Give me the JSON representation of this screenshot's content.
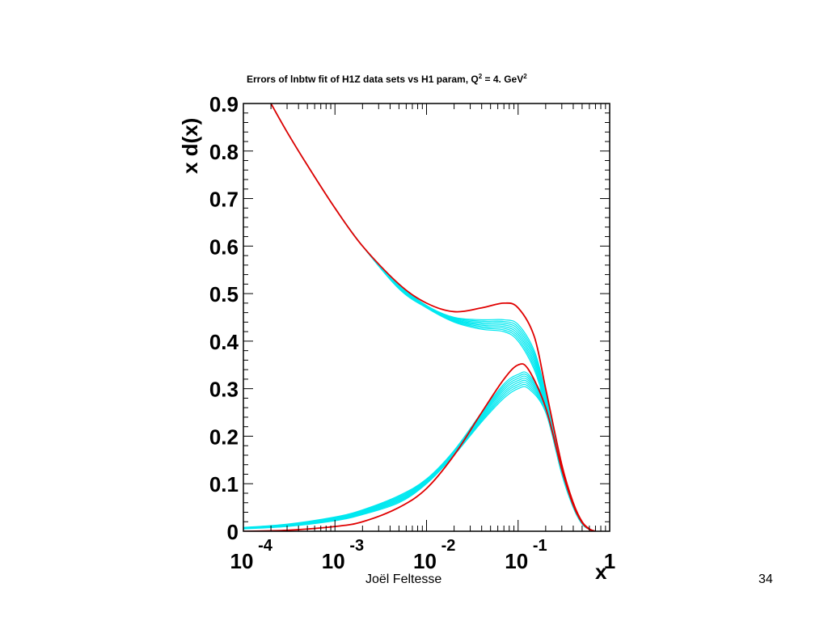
{
  "slide": {
    "author": "Joël Feltesse",
    "page_number": "34"
  },
  "chart_data": {
    "type": "line",
    "title_main": "Errors of lnbtw fit of H1Z data sets vs H1 param, Q",
    "title_sup1": "2",
    "title_mid": " = 4. GeV",
    "title_sup2": "2",
    "ylabel": "x d(x)",
    "xlabel": "x",
    "x_scale": "log",
    "xlim": [
      0.0001,
      1
    ],
    "ylim": [
      0,
      0.9
    ],
    "y_ticks": [
      "0",
      "0.1",
      "0.2",
      "0.3",
      "0.4",
      "0.5",
      "0.6",
      "0.7",
      "0.8",
      "0.9"
    ],
    "x_ticks": [
      {
        "base": "10",
        "exp": "-4"
      },
      {
        "base": "10",
        "exp": "-3"
      },
      {
        "base": "10",
        "exp": "-2"
      },
      {
        "base": "10",
        "exp": "-1"
      },
      {
        "base": "1",
        "exp": ""
      }
    ],
    "grid": false,
    "colors": {
      "reference": "#e00000",
      "fits": "#00e8f0",
      "axis": "#000000"
    },
    "series": [
      {
        "role": "upper-reference",
        "x": [
          0.0002,
          0.0003,
          0.0005,
          0.001,
          0.002,
          0.005,
          0.01,
          0.02,
          0.04,
          0.07,
          0.1,
          0.15,
          0.2,
          0.3,
          0.4,
          0.5,
          0.6,
          0.7
        ],
        "y": [
          0.9,
          0.84,
          0.77,
          0.68,
          0.6,
          0.52,
          0.48,
          0.462,
          0.47,
          0.48,
          0.47,
          0.41,
          0.3,
          0.14,
          0.06,
          0.02,
          0.005,
          0.0
        ]
      },
      {
        "role": "lower-reference",
        "x": [
          0.0001,
          0.0003,
          0.001,
          0.002,
          0.005,
          0.01,
          0.02,
          0.04,
          0.07,
          0.1,
          0.13,
          0.2,
          0.3,
          0.4,
          0.5,
          0.6,
          0.7
        ],
        "y": [
          0.0,
          0.002,
          0.01,
          0.02,
          0.05,
          0.09,
          0.16,
          0.25,
          0.32,
          0.35,
          0.34,
          0.26,
          0.13,
          0.055,
          0.018,
          0.004,
          0.0
        ]
      },
      {
        "role": "upper-fits-band",
        "x": [
          0.0002,
          0.0003,
          0.0005,
          0.001,
          0.002,
          0.005,
          0.01,
          0.02,
          0.04,
          0.07,
          0.1,
          0.15,
          0.2,
          0.3,
          0.4,
          0.5,
          0.6,
          0.7
        ],
        "y_low": [
          0.9,
          0.84,
          0.77,
          0.68,
          0.6,
          0.51,
          0.47,
          0.44,
          0.425,
          0.42,
          0.4,
          0.34,
          0.26,
          0.12,
          0.05,
          0.015,
          0.004,
          0.0
        ],
        "y_high": [
          0.9,
          0.84,
          0.77,
          0.68,
          0.6,
          0.52,
          0.475,
          0.45,
          0.445,
          0.445,
          0.435,
          0.38,
          0.29,
          0.135,
          0.055,
          0.018,
          0.005,
          0.0
        ]
      },
      {
        "role": "lower-fits-band",
        "x": [
          0.0001,
          0.0003,
          0.001,
          0.002,
          0.005,
          0.01,
          0.02,
          0.04,
          0.07,
          0.1,
          0.13,
          0.2,
          0.3,
          0.4,
          0.5,
          0.6,
          0.7
        ],
        "y_low": [
          0.005,
          0.01,
          0.022,
          0.035,
          0.06,
          0.1,
          0.16,
          0.23,
          0.28,
          0.3,
          0.3,
          0.25,
          0.12,
          0.05,
          0.015,
          0.004,
          0.0
        ],
        "y_high": [
          0.008,
          0.015,
          0.03,
          0.045,
          0.075,
          0.11,
          0.17,
          0.25,
          0.31,
          0.33,
          0.33,
          0.27,
          0.135,
          0.056,
          0.018,
          0.005,
          0.0
        ]
      }
    ]
  }
}
